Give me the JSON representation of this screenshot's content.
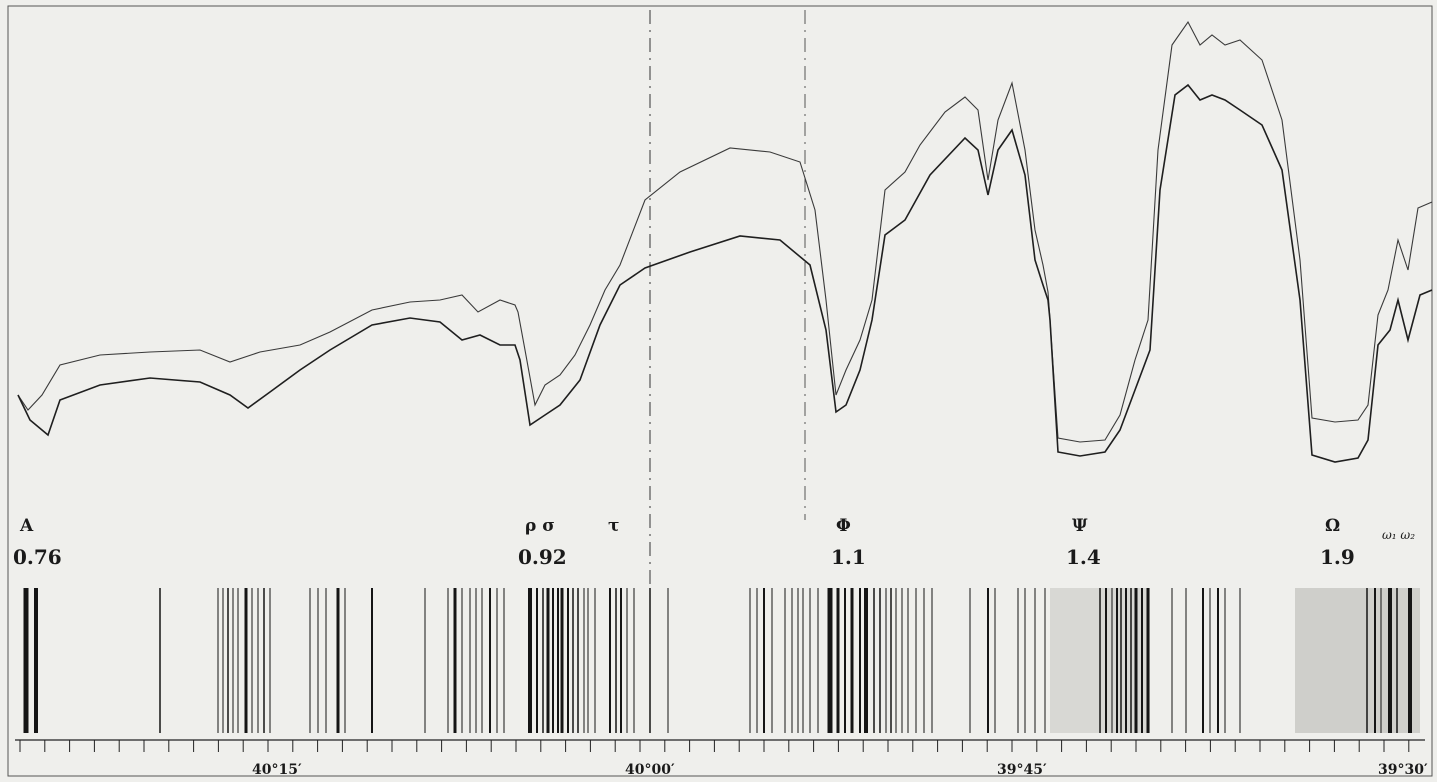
{
  "markers": [
    {
      "band": "A",
      "value": "0.76"
    },
    {
      "band": "ρ σ",
      "value": "0.92"
    },
    {
      "band": "τ",
      "value": ""
    },
    {
      "band": "Φ",
      "value": "1.1"
    },
    {
      "band": "Ψ",
      "value": "1.4"
    },
    {
      "band": "Ω",
      "value": "1.9"
    },
    {
      "band": "ω₁ ω₂",
      "value": ""
    }
  ],
  "scale": [
    "40°15′",
    "40°00′",
    "39°45′",
    "39°30′"
  ],
  "colors": {
    "paper": "#efefec",
    "ink": "#1a1a1a",
    "trace": "#2a2a2a",
    "frame": "#555555"
  }
}
